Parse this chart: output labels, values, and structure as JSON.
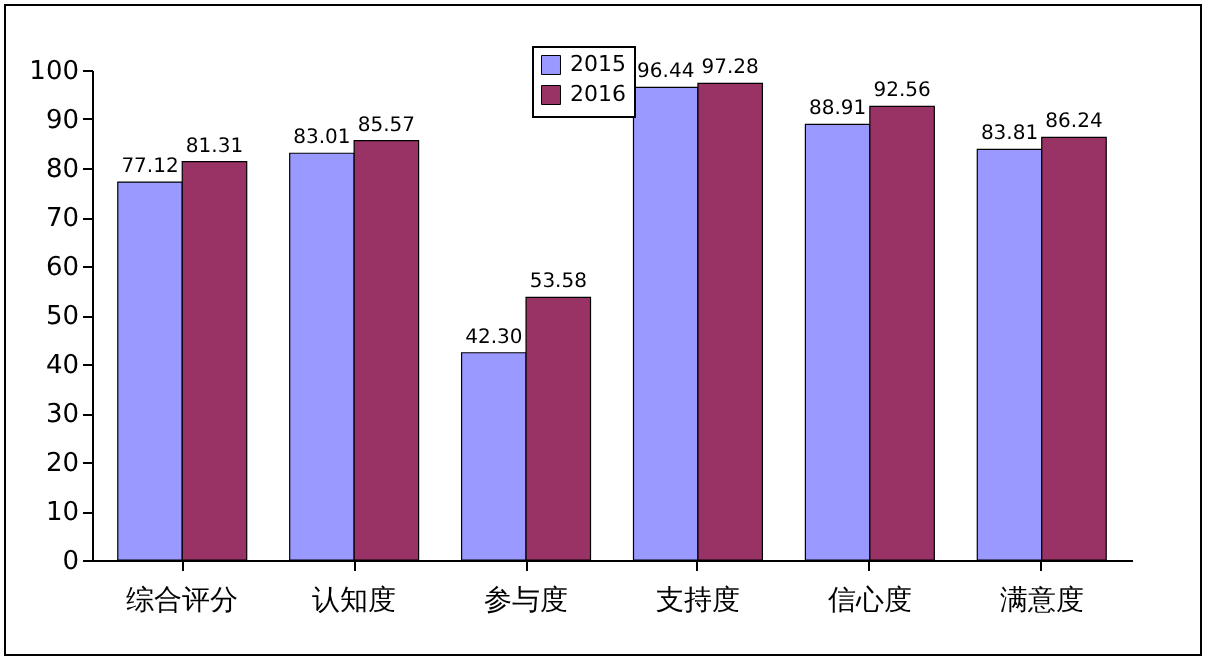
{
  "chart_data": {
    "type": "bar",
    "categories": [
      "综合评分",
      "认知度",
      "参与度",
      "支持度",
      "信心度",
      "满意度"
    ],
    "series": [
      {
        "name": "2015",
        "color": "#9999ff",
        "values": [
          77.12,
          83.01,
          42.3,
          96.44,
          88.91,
          83.81
        ],
        "value_labels": [
          "77.12",
          "83.01",
          "42.30",
          "96.44",
          "88.91",
          "83.81"
        ]
      },
      {
        "name": "2016",
        "color": "#993366",
        "values": [
          81.31,
          85.57,
          53.58,
          97.28,
          92.56,
          86.24
        ],
        "value_labels": [
          "81.31",
          "85.57",
          "53.58",
          "97.28",
          "92.56",
          "86.24"
        ]
      }
    ],
    "ylim": [
      0,
      100
    ],
    "yticks": [
      0,
      10,
      20,
      30,
      40,
      50,
      60,
      70,
      80,
      90,
      100
    ],
    "legend": "top"
  }
}
